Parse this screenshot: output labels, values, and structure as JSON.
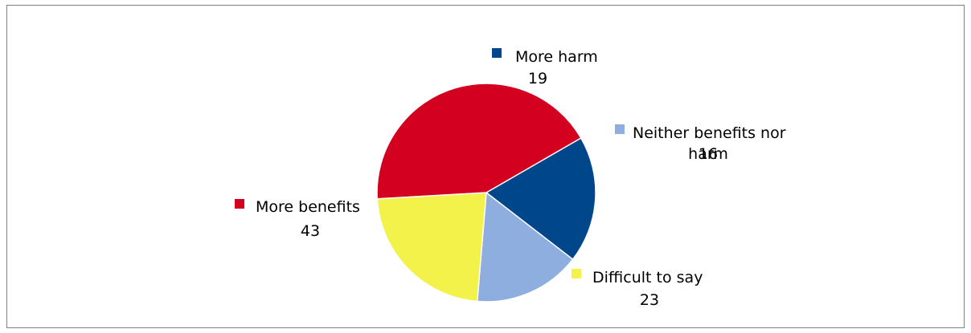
{
  "chart_data": {
    "type": "pie",
    "title": "",
    "slices": [
      {
        "label": "More harm",
        "value": 19,
        "value_label": "19",
        "color": "#00468b"
      },
      {
        "label": "Neither benefits nor harm",
        "label_lines": [
          "Neither benefits nor",
          "harm"
        ],
        "value": 16,
        "value_label": "16",
        "color": "#8eaee0"
      },
      {
        "label": "Difficult to say",
        "value": 23,
        "value_label": "23",
        "color": "#f2f24b"
      },
      {
        "label": "More benefits",
        "value": 43,
        "value_label": "43",
        "color": "#d4001f"
      }
    ],
    "start_angle_deg": -30,
    "direction": "clockwise",
    "legend": "inline-labels"
  }
}
